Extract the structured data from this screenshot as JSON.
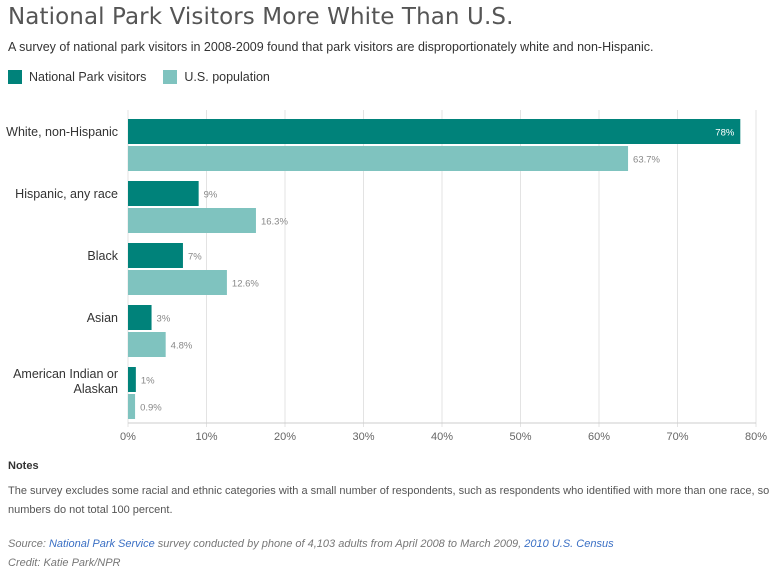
{
  "header": {
    "title": "National Park Visitors More White Than U.S.",
    "subtitle": "A survey of national park visitors in 2008-2009 found that park visitors are disproportionately white and non-Hispanic."
  },
  "legend": [
    {
      "label": "National Park visitors",
      "color": "#00827a"
    },
    {
      "label": "U.S. population",
      "color": "#7fc3bf"
    }
  ],
  "chart_data": {
    "type": "bar",
    "orientation": "horizontal",
    "categories": [
      [
        "White, non-Hispanic"
      ],
      [
        "Hispanic, any race"
      ],
      [
        "Black"
      ],
      [
        "Asian"
      ],
      [
        "American Indian or",
        "Alaskan"
      ]
    ],
    "series": [
      {
        "name": "National Park visitors",
        "color": "#00827a",
        "values": [
          78,
          9,
          7,
          3,
          1
        ],
        "labels": [
          "78%",
          "9%",
          "7%",
          "3%",
          "1%"
        ]
      },
      {
        "name": "U.S. population",
        "color": "#7fc3bf",
        "values": [
          63.7,
          16.3,
          12.6,
          4.8,
          0.9
        ],
        "labels": [
          "63.7%",
          "16.3%",
          "12.6%",
          "4.8%",
          "0.9%"
        ]
      }
    ],
    "xlim": [
      0,
      80
    ],
    "xticks": [
      0,
      10,
      20,
      30,
      40,
      50,
      60,
      70,
      80
    ],
    "xtick_labels": [
      "0%",
      "10%",
      "20%",
      "30%",
      "40%",
      "50%",
      "60%",
      "70%",
      "80%"
    ],
    "grid": true,
    "legend_position": "top-left"
  },
  "notes": {
    "heading": "Notes",
    "text": "The survey excludes some racial and ethnic categories with a small number of respondents, such as respondents who identified with more than one race, so numbers do not total 100 percent."
  },
  "source": {
    "prefix": "Source: ",
    "link1": "National Park Service",
    "middle": " survey conducted by phone of 4,103 adults from April 2008 to March 2009, ",
    "link2": "2010 U.S. Census"
  },
  "credit": "Credit: Katie Park/NPR"
}
